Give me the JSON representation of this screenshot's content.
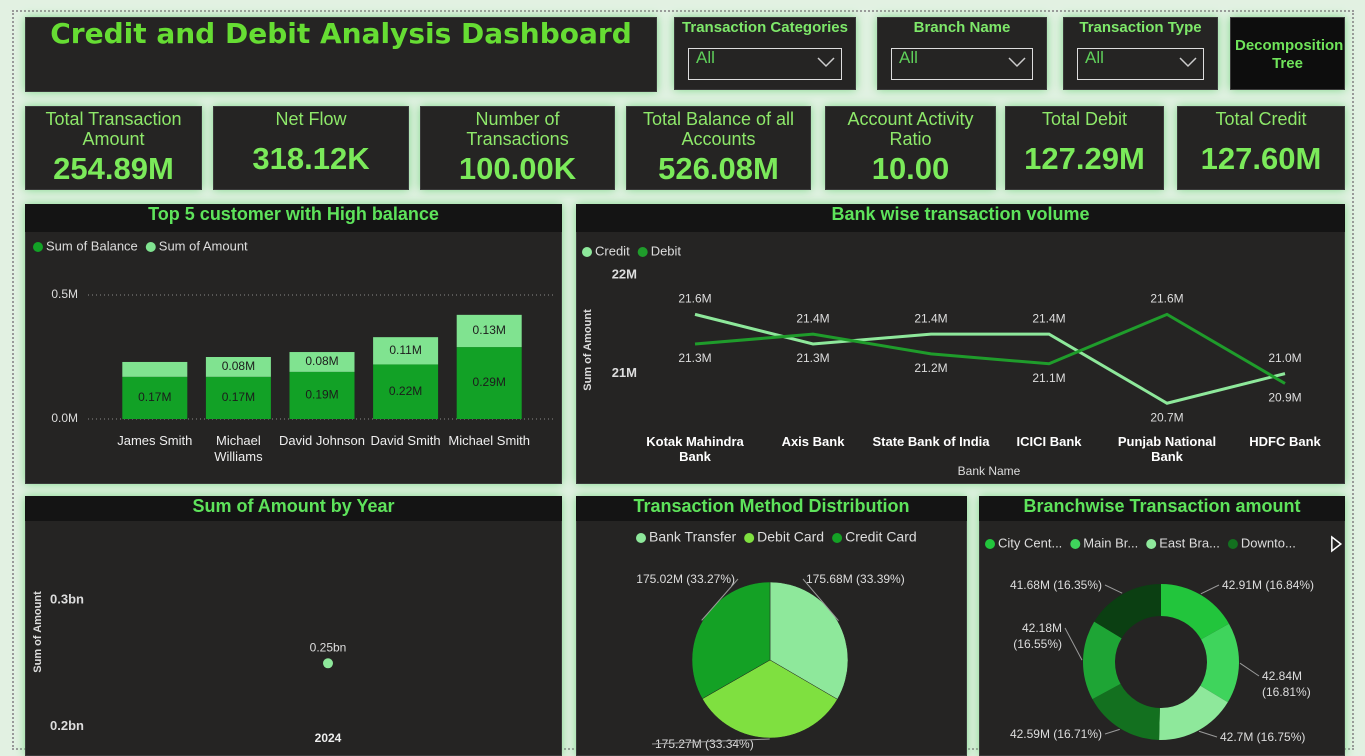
{
  "header": {
    "title": "Credit and Debit Analysis Dashboard"
  },
  "filters": [
    {
      "label": "Transaction Categories",
      "value": "All"
    },
    {
      "label": "Branch Name",
      "value": "All"
    },
    {
      "label": "Transaction Type",
      "value": "All"
    }
  ],
  "button": {
    "label": "Decomposition Tree"
  },
  "kpis": [
    {
      "label": "Total Transaction Amount",
      "value": "254.89M"
    },
    {
      "label": "Net Flow",
      "value": "318.12K"
    },
    {
      "label": "Number of Transactions",
      "value": "100.00K"
    },
    {
      "label": "Total Balance of all Accounts",
      "value": "526.08M"
    },
    {
      "label": "Account Activity Ratio",
      "value": "10.00"
    },
    {
      "label": "Total Debit",
      "value": "127.29M"
    },
    {
      "label": "Total Credit",
      "value": "127.60M"
    }
  ],
  "chart_data": [
    {
      "type": "bar",
      "stacked": true,
      "title": "Top 5 customer with High balance",
      "categories": [
        "James Smith",
        "Michael Williams",
        "David Johnson",
        "David Smith",
        "Michael Smith"
      ],
      "series": [
        {
          "name": "Sum of Balance",
          "color": "#12a126",
          "values": [
            0.17,
            0.17,
            0.19,
            0.22,
            0.29
          ],
          "value_labels": [
            "0.17M",
            "0.17M",
            "0.19M",
            "0.22M",
            "0.29M"
          ]
        },
        {
          "name": "Sum of Amount",
          "color": "#80e390",
          "values": [
            0.06,
            0.08,
            0.08,
            0.11,
            0.13
          ],
          "value_labels": [
            null,
            "0.08M",
            "0.08M",
            "0.11M",
            "0.13M"
          ]
        }
      ],
      "ylim": [
        0,
        0.5
      ],
      "yticks": [
        {
          "value": 0,
          "label": "0.0M"
        },
        {
          "value": 0.5,
          "label": "0.5M"
        }
      ],
      "grid": true
    },
    {
      "type": "line",
      "title": "Bank wise transaction volume",
      "x_label": "Bank Name",
      "y_label": "Sum of Amount",
      "categories": [
        "Kotak Mahindra Bank",
        "Axis Bank",
        "State Bank of India",
        "ICICI Bank",
        "Punjab National Bank",
        "HDFC Bank"
      ],
      "series": [
        {
          "name": "Credit",
          "color": "#8ee89b",
          "values": [
            21.6,
            21.3,
            21.4,
            21.4,
            20.7,
            21.0
          ],
          "value_labels": [
            "21.6M",
            "21.3M",
            "21.4M",
            "21.4M",
            "20.7M",
            "21.0M"
          ]
        },
        {
          "name": "Debit",
          "color": "#1f9c2b",
          "values": [
            21.3,
            21.4,
            21.2,
            21.1,
            21.6,
            20.9
          ],
          "value_labels": [
            "21.3M",
            "21.4M",
            "21.2M",
            "21.1M",
            "21.6M",
            "20.9M"
          ]
        }
      ],
      "ylim": [
        20.5,
        22.1
      ],
      "yticks": [
        {
          "value": 21,
          "label": "21M"
        },
        {
          "value": 22,
          "label": "22M"
        }
      ],
      "grid": false
    },
    {
      "type": "line",
      "title": "Sum of Amount by Year",
      "y_label": "Sum of Amount",
      "x": [
        2024
      ],
      "xlim": [
        2023,
        2025
      ],
      "xticks": [
        2024
      ],
      "values": [
        0.25
      ],
      "value_labels": [
        "0.25bn"
      ],
      "color": "#8ee89b",
      "ylim": [
        0.19,
        0.32
      ],
      "yticks": [
        {
          "value": 0.2,
          "label": "0.2bn"
        },
        {
          "value": 0.3,
          "label": "0.3bn"
        }
      ],
      "grid": false
    },
    {
      "type": "pie",
      "title": "Transaction Method Distribution",
      "categories": [
        "Bank Transfer",
        "Debit Card",
        "Credit Card"
      ],
      "values": [
        175.68,
        175.27,
        175.02
      ],
      "value_labels": [
        "175.68M (33.39%)",
        "175.27M (33.34%)",
        "175.02M (33.27%)"
      ],
      "colors": [
        "#8ee89b",
        "#7fe040",
        "#14a125"
      ]
    },
    {
      "type": "pie",
      "donut": true,
      "title": "Branchwise Transaction amount",
      "categories": [
        "City Cent...",
        "Main Br...",
        "East Bra...",
        "Downto...",
        null,
        null
      ],
      "values": [
        42.91,
        42.84,
        42.7,
        42.59,
        42.18,
        41.68
      ],
      "value_labels": [
        "42.91M (16.84%)",
        "42.84M (16.81%)",
        "42.7M (16.75%)",
        "42.59M (16.71%)",
        "42.18M (16.55%)",
        "41.68M (16.35%)"
      ],
      "colors": [
        "#22c53c",
        "#3fd45c",
        "#8ee89b",
        "#13701f",
        "#1ea535",
        "#0b3f12"
      ]
    }
  ]
}
